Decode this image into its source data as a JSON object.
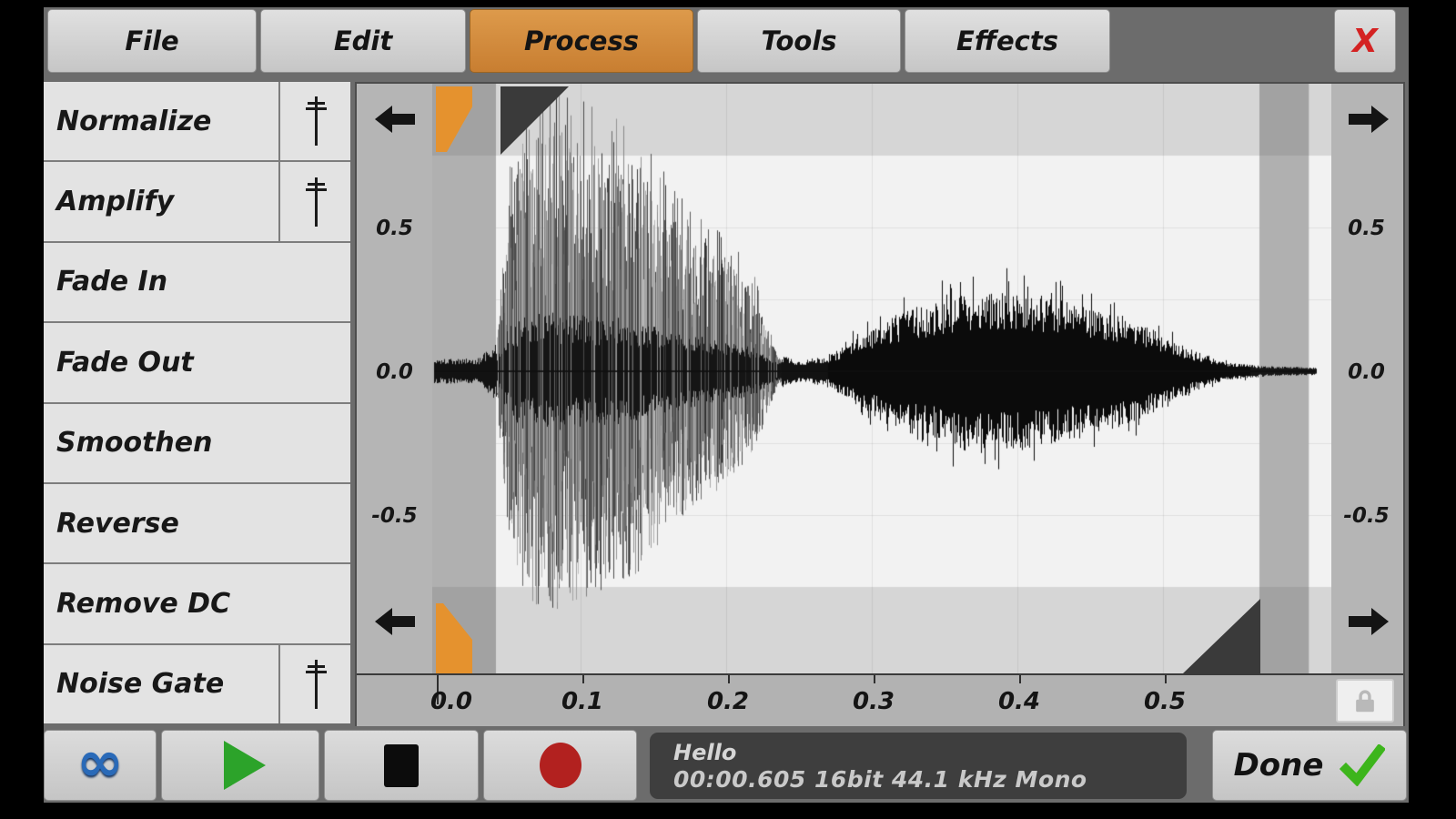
{
  "menu": {
    "items": [
      {
        "label": "File",
        "active": false
      },
      {
        "label": "Edit",
        "active": false
      },
      {
        "label": "Process",
        "active": true
      },
      {
        "label": "Tools",
        "active": false
      },
      {
        "label": "Effects",
        "active": false
      }
    ],
    "close_label": "X"
  },
  "sidebar": {
    "items": [
      {
        "label": "Normalize",
        "has_slider": true
      },
      {
        "label": "Amplify",
        "has_slider": true
      },
      {
        "label": "Fade In",
        "has_slider": false
      },
      {
        "label": "Fade Out",
        "has_slider": false
      },
      {
        "label": "Smoothen",
        "has_slider": false
      },
      {
        "label": "Reverse",
        "has_slider": false
      },
      {
        "label": "Remove DC",
        "has_slider": false
      },
      {
        "label": "Noise Gate",
        "has_slider": true
      }
    ]
  },
  "waveform": {
    "y_labels": [
      "0.5",
      "0.0",
      "-0.5"
    ],
    "x_labels": [
      "0.0",
      "0.1",
      "0.2",
      "0.3",
      "0.4",
      "0.5"
    ],
    "icons": [
      "arrow-left-icon",
      "arrow-right-icon",
      "lock-icon"
    ]
  },
  "chart_data": {
    "type": "waveform",
    "title": "Hello",
    "sample_info": "16bit 44.1 kHz Mono",
    "duration_s": 0.605,
    "x_axis": {
      "ticks": [
        0.0,
        0.1,
        0.2,
        0.3,
        0.4,
        0.5
      ],
      "unit": "s"
    },
    "y_axis": {
      "ticks": [
        0.5,
        0.0,
        -0.5
      ],
      "range": [
        -1,
        1
      ],
      "gridline_step": 0.25
    },
    "selection": {
      "start_s": 0.043,
      "end_s": 0.566
    },
    "envelope": {
      "t": [
        0,
        0.03,
        0.042,
        0.05,
        0.06,
        0.08,
        0.1,
        0.12,
        0.14,
        0.16,
        0.18,
        0.2,
        0.22,
        0.235,
        0.25,
        0.27,
        0.29,
        0.31,
        0.33,
        0.36,
        0.39,
        0.42,
        0.45,
        0.48,
        0.5,
        0.52,
        0.54,
        0.57,
        0.605
      ],
      "amp": [
        0.035,
        0.04,
        0.1,
        0.65,
        0.9,
        0.95,
        0.9,
        0.85,
        0.8,
        0.62,
        0.52,
        0.45,
        0.3,
        0.06,
        0.03,
        0.05,
        0.12,
        0.18,
        0.22,
        0.26,
        0.28,
        0.26,
        0.22,
        0.18,
        0.12,
        0.07,
        0.03,
        0.015,
        0.01
      ]
    },
    "segments": [
      {
        "from_s": 0.0,
        "to_s": 0.042,
        "style": "quiet-noise"
      },
      {
        "from_s": 0.042,
        "to_s": 0.238,
        "style": "loud-spiky-gray"
      },
      {
        "from_s": 0.238,
        "to_s": 0.27,
        "style": "quiet-noise"
      },
      {
        "from_s": 0.27,
        "to_s": 0.56,
        "style": "dense-black"
      },
      {
        "from_s": 0.56,
        "to_s": 0.605,
        "style": "tail"
      }
    ]
  },
  "transport": [
    {
      "name": "loop",
      "icon": "infinity-icon"
    },
    {
      "name": "play",
      "icon": "play-icon"
    },
    {
      "name": "stop",
      "icon": "stop-icon"
    },
    {
      "name": "record",
      "icon": "record-icon"
    }
  ],
  "status": {
    "title": "Hello",
    "details": "00:00.605 16bit 44.1 kHz Mono"
  },
  "done": {
    "label": "Done"
  },
  "colors": {
    "background": "#6c6c6c",
    "accent_orange": "#cc8840",
    "selection_marker": "#e5922e",
    "selection_handle": "#3a3a3a",
    "plot_white": "#f2f2f2",
    "plot_band": "#d6d6d6",
    "unselected_column": "#b0b0b0",
    "loop_blue": "#2a6ab8",
    "play_green": "#2ca32a",
    "record_red": "#b2211f",
    "check_green": "#3db51c",
    "close_red": "#d42222",
    "status_bg": "#3e3e3e"
  }
}
